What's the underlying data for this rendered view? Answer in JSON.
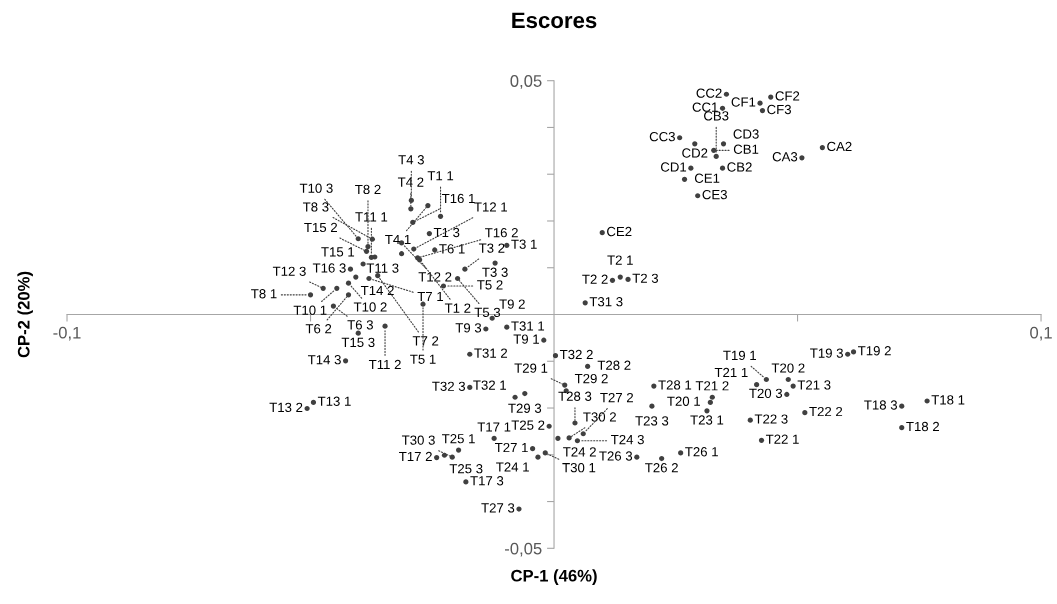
{
  "chart_data": {
    "type": "scatter",
    "title": "Escores",
    "xlabel": "CP-1 (46%)",
    "ylabel": "CP-2 (20%)",
    "xlim": [
      -0.1,
      0.1
    ],
    "ylim": [
      -0.05,
      0.05
    ],
    "xticks": [
      {
        "value": -0.1,
        "label": "-0,1"
      },
      {
        "value": -0.05,
        "label": null
      },
      {
        "value": 0.05,
        "label": null
      },
      {
        "value": 0.1,
        "label": "0,1"
      }
    ],
    "yticks": [
      {
        "value": -0.05,
        "label": "-0,05"
      },
      {
        "value": -0.04,
        "label": null
      },
      {
        "value": -0.03,
        "label": null
      },
      {
        "value": -0.02,
        "label": null
      },
      {
        "value": -0.01,
        "label": null
      },
      {
        "value": 0.01,
        "label": null
      },
      {
        "value": 0.02,
        "label": null
      },
      {
        "value": 0.03,
        "label": null
      },
      {
        "value": 0.04,
        "label": null
      },
      {
        "value": 0.05,
        "label": "0,05"
      }
    ],
    "grid": false,
    "marker": "circle",
    "series": [
      {
        "color": "#404040",
        "value_labels": [
          "T1 1",
          "T1 2",
          "T1 3",
          "T2 1",
          "T2 2",
          "T2 3",
          "T3 1",
          "T3 2",
          "T3 3",
          "T4 1",
          "T4 2",
          "T4 3",
          "T5 1",
          "T5 2",
          "T5 3",
          "T6 1",
          "T6 2",
          "T6 3",
          "T7 1",
          "T7 2",
          "T8 1",
          "T8 2",
          "T8 3",
          "T9 1",
          "T9 2",
          "T9 3",
          "T10 1",
          "T10 2",
          "T10 3",
          "T11 1",
          "T11 2",
          "T11 3",
          "T12 1",
          "T12 2",
          "T12 3",
          "T13 1",
          "T13 2",
          "T14 2",
          "T14 3",
          "T15 1",
          "T15 2",
          "T15 3",
          "T16 1",
          "T16 2",
          "T16 3",
          null,
          "T17 1",
          "T17 2",
          "T17 3",
          "T18 1",
          "T18 2",
          "T18 3",
          "T19 1",
          "T19 2",
          "T19 3",
          "T20 1",
          "T20 2",
          "T20 3",
          "T21 1",
          "T21 2",
          "T21 3",
          "T22 1",
          "T22 2",
          "T22 3",
          "T23 1",
          "T23 3",
          "T24 1",
          "T24 2",
          "T24 3",
          "T25 1",
          "T25 2",
          "T25 3",
          "T26 1",
          "T26 2",
          "T26 3",
          "T27 1",
          "T27 2",
          "T27 3",
          "T28 1",
          "T28 2",
          "T28 3",
          "T29 1",
          "T29 2",
          "T29 3",
          "T30 1",
          "T30 2",
          "T30 3",
          "T31 1",
          "T31 2",
          "T31 3",
          "T32 1",
          "T32 2",
          "T32 3",
          "CA2",
          "CA3",
          "CB1",
          "CB2",
          "CB3",
          "CC1",
          "CC2",
          "CC3",
          "CD1",
          "CD2",
          "CD3",
          "CE1",
          "CE2",
          "CE3",
          "CF1",
          "CF2",
          "CF3"
        ],
        "x": [
          -0.0233,
          -0.0276,
          -0.0256,
          0.0136,
          0.012,
          0.0152,
          -0.0097,
          -0.0183,
          -0.0121,
          -0.0259,
          -0.0294,
          -0.0293,
          -0.0269,
          -0.0227,
          -0.0198,
          -0.0245,
          -0.0422,
          -0.0453,
          -0.038,
          -0.0362,
          -0.05,
          -0.0382,
          -0.0373,
          -0.0021,
          -0.0127,
          -0.014,
          -0.0446,
          -0.0422,
          -0.0402,
          -0.0375,
          -0.0347,
          -0.0313,
          -0.0288,
          -0.0313,
          -0.0474,
          -0.0494,
          -0.0507,
          -0.0407,
          -0.0428,
          -0.0392,
          -0.0385,
          -0.0402,
          -0.029,
          -0.028,
          -0.0418,
          -0.0368,
          -0.0123,
          -0.0241,
          -0.0181,
          0.0766,
          0.0714,
          0.0714,
          0.0436,
          0.0615,
          0.0603,
          0.0321,
          0.0481,
          0.0478,
          0.0416,
          0.0325,
          0.0491,
          0.0426,
          0.0515,
          0.0403,
          0.0314,
          0.0201,
          -0.0033,
          0.0008,
          0.0048,
          -0.0196,
          -0.001,
          -0.0225,
          0.026,
          0.0221,
          0.017,
          -0.0044,
          0.006,
          -0.0072,
          0.0205,
          0.0069,
          0.0043,
          0.0022,
          0.0025,
          -0.006,
          -0.0018,
          0.0031,
          -0.0209,
          -0.0097,
          -0.0173,
          0.0064,
          -0.008,
          0.0003,
          -0.0173,
          0.0551,
          0.0509,
          0.0328,
          0.0346,
          0.0333,
          0.0346,
          0.0354,
          0.0258,
          0.0281,
          0.0289,
          0.0348,
          0.0268,
          0.0099,
          0.0295,
          0.0423,
          0.0445,
          0.0428
        ],
        "values": [
          0.021,
          0.0117,
          0.0173,
          0.008,
          0.0073,
          0.0075,
          0.0148,
          0.0097,
          0.011,
          0.0233,
          0.0226,
          0.0244,
          0.0022,
          0.0061,
          0.0077,
          0.0138,
          0.0042,
          0.0018,
          0.0077,
          0.0083,
          0.0042,
          0.0145,
          0.0161,
          -0.0055,
          -0.0008,
          -0.0031,
          0.0056,
          0.0067,
          0.0162,
          0.0122,
          -0.0025,
          0.013,
          0.014,
          0.0153,
          0.0056,
          -0.0188,
          -0.0201,
          0.008,
          -0.0099,
          0.0108,
          0.0135,
          -0.004,
          0.0197,
          0.0121,
          0.0097,
          0.0123,
          -0.0265,
          -0.0306,
          -0.0358,
          -0.0185,
          -0.0242,
          -0.0196,
          -0.0139,
          -0.008,
          -0.0085,
          -0.0188,
          -0.0139,
          -0.0171,
          -0.015,
          -0.0177,
          -0.0153,
          -0.0269,
          -0.021,
          -0.0226,
          -0.0206,
          -0.0196,
          -0.0305,
          -0.0265,
          -0.027,
          -0.029,
          -0.0239,
          -0.0301,
          -0.0296,
          -0.0308,
          -0.0305,
          -0.0287,
          -0.0255,
          -0.0416,
          -0.0153,
          -0.0111,
          -0.0232,
          -0.0151,
          -0.0163,
          -0.0169,
          -0.0296,
          -0.0264,
          -0.0305,
          -0.0027,
          -0.0085,
          0.0025,
          -0.0177,
          -0.0088,
          -0.0156,
          0.0357,
          0.0335,
          0.0351,
          0.0313,
          0.0338,
          0.0441,
          0.0471,
          0.0378,
          0.0313,
          0.0365,
          0.0365,
          0.0289,
          0.0175,
          0.0254,
          0.0452,
          0.0465,
          0.0436
        ]
      }
    ]
  }
}
